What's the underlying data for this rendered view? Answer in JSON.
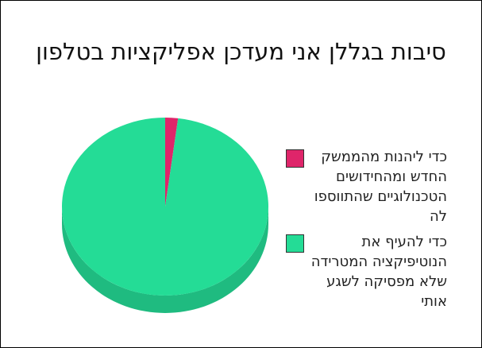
{
  "chart_data": {
    "type": "pie",
    "title": "סיבות בגללן אני מעדכן אפליקציות בטלפון",
    "slices": [
      {
        "label": "כדי ליהנות מהממשק החדש ומהחידושים הטכנולוגיים שהתווספו לה",
        "value": 2,
        "color": "#df256a"
      },
      {
        "label": "כדי להעיף את הנוטיפיקציה המטרידה שלא מפסיקה לשגע אותי",
        "value": 98,
        "color": "#24dc96"
      }
    ],
    "legend_position": "right",
    "style": "3d"
  }
}
